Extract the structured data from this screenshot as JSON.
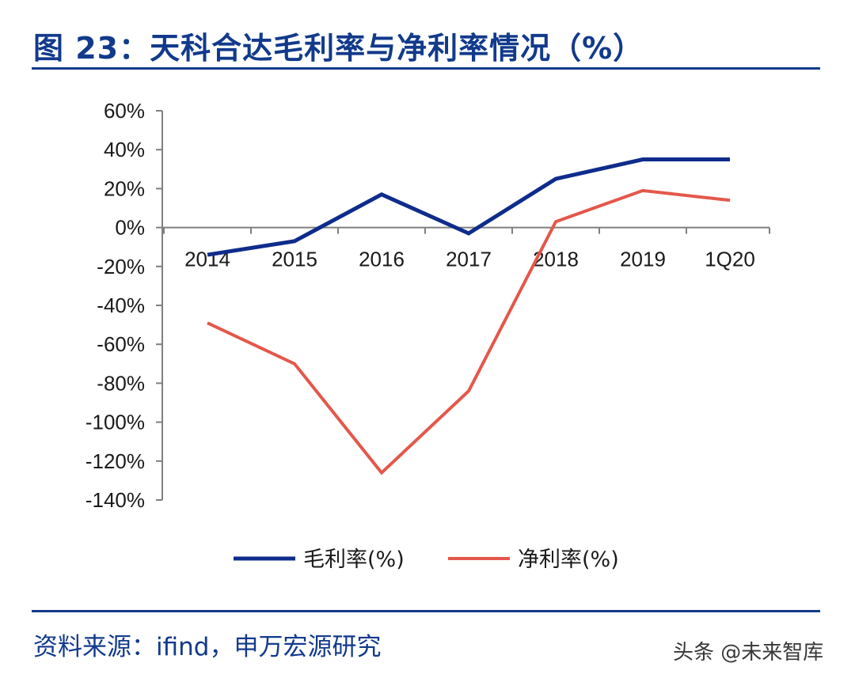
{
  "header": {
    "title": "图 23：天科合达毛利率与净利率情况（%）"
  },
  "footer": {
    "source": "资料来源：ifind，申万宏源研究",
    "watermark": "头条 @未来智库"
  },
  "chart_data": {
    "type": "line",
    "title": "",
    "xlabel": "",
    "ylabel": "",
    "categories": [
      "2014",
      "2015",
      "2016",
      "2017",
      "2018",
      "2019",
      "1Q20"
    ],
    "yticks": [
      "60%",
      "40%",
      "20%",
      "0%",
      "-20%",
      "-40%",
      "-60%",
      "-80%",
      "-100%",
      "-120%",
      "-140%"
    ],
    "ytick_values": [
      60,
      40,
      20,
      0,
      -20,
      -40,
      -60,
      -80,
      -100,
      -120,
      -140
    ],
    "ylim": [
      -140,
      60
    ],
    "grid": false,
    "legend_position": "bottom",
    "series": [
      {
        "name": "毛利率(%)",
        "color": "#0f2c8c",
        "values": [
          -14,
          -7,
          17,
          -3,
          25,
          35,
          35
        ]
      },
      {
        "name": "净利率(%)",
        "color": "#e4574b",
        "values": [
          -49,
          -70,
          -126,
          -84,
          3,
          19,
          14
        ]
      }
    ]
  }
}
